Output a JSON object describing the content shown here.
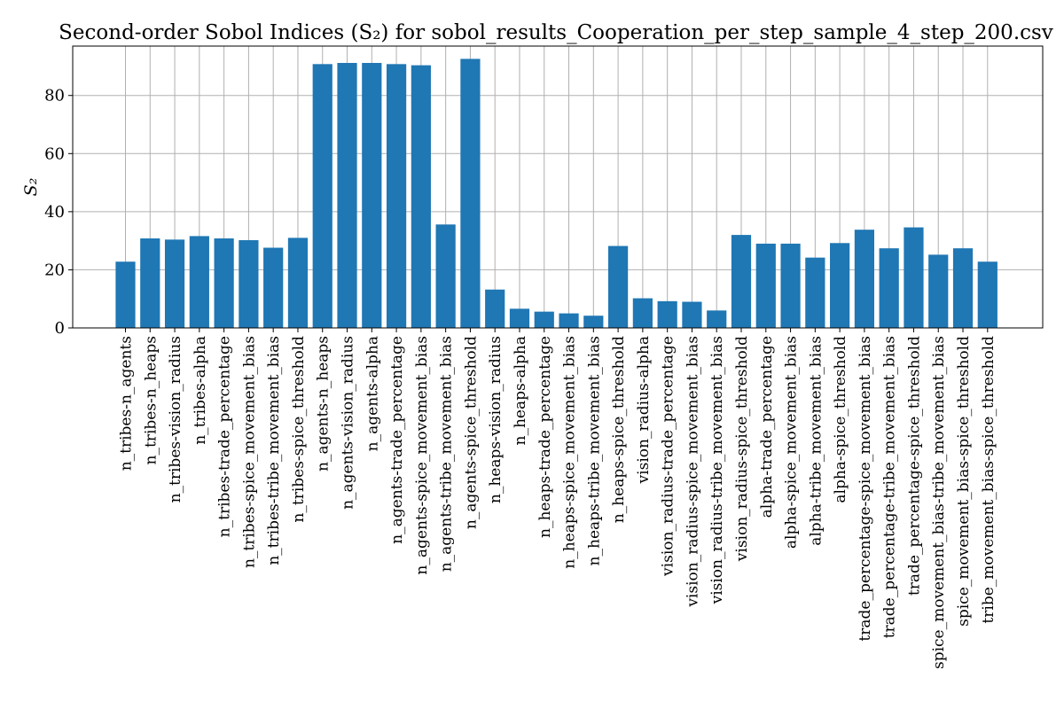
{
  "chart_data": {
    "type": "bar",
    "title": "Second-order Sobol Indices (S₂) for sobol_results_Cooperation_per_step_sample_4_step_200.csv",
    "xlabel": "",
    "ylabel": "S₂",
    "ylim": [
      0,
      97
    ],
    "yticks": [
      0,
      20,
      40,
      60,
      80
    ],
    "grid": true,
    "bar_color": "#1f77b4",
    "categories": [
      "n_tribes-n_agents",
      "n_tribes-n_heaps",
      "n_tribes-vision_radius",
      "n_tribes-alpha",
      "n_tribes-trade_percentage",
      "n_tribes-spice_movement_bias",
      "n_tribes-tribe_movement_bias",
      "n_tribes-spice_threshold",
      "n_agents-n_heaps",
      "n_agents-vision_radius",
      "n_agents-alpha",
      "n_agents-trade_percentage",
      "n_agents-spice_movement_bias",
      "n_agents-tribe_movement_bias",
      "n_agents-spice_threshold",
      "n_heaps-vision_radius",
      "n_heaps-alpha",
      "n_heaps-trade_percentage",
      "n_heaps-spice_movement_bias",
      "n_heaps-tribe_movement_bias",
      "n_heaps-spice_threshold",
      "vision_radius-alpha",
      "vision_radius-trade_percentage",
      "vision_radius-spice_movement_bias",
      "vision_radius-tribe_movement_bias",
      "vision_radius-spice_threshold",
      "alpha-trade_percentage",
      "alpha-spice_movement_bias",
      "alpha-tribe_movement_bias",
      "alpha-spice_threshold",
      "trade_percentage-spice_movement_bias",
      "trade_percentage-tribe_movement_bias",
      "trade_percentage-spice_threshold",
      "spice_movement_bias-tribe_movement_bias",
      "spice_movement_bias-spice_threshold",
      "tribe_movement_bias-spice_threshold"
    ],
    "values": [
      22.8,
      30.8,
      30.4,
      31.6,
      30.8,
      30.2,
      27.6,
      31.0,
      90.8,
      91.2,
      91.2,
      90.8,
      90.4,
      35.6,
      92.6,
      13.2,
      6.6,
      5.6,
      5.0,
      4.2,
      28.2,
      10.2,
      9.2,
      9.0,
      6.0,
      32.0,
      29.0,
      29.0,
      24.2,
      29.2,
      33.8,
      27.4,
      34.6,
      25.2,
      27.4,
      22.8
    ]
  }
}
